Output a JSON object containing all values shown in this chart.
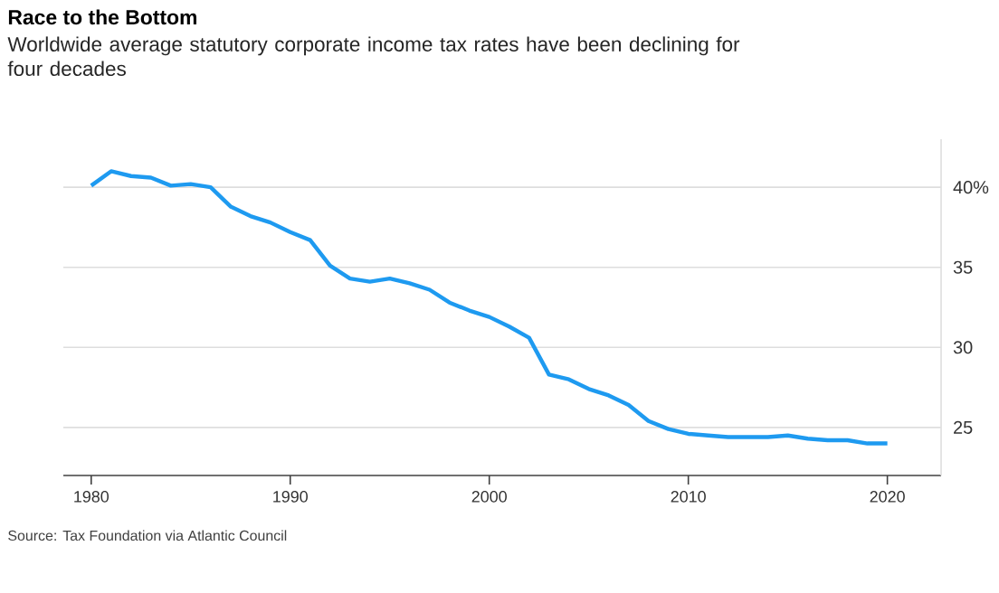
{
  "chart_data": {
    "type": "line",
    "title": "Race to the Bottom",
    "subtitle": "Worldwide average statutory corporate income tax rates have been declining for four decades",
    "annotations": [
      "Source: Tax Foundation via Atlantic Council"
    ],
    "x": [
      1980,
      1981,
      1982,
      1983,
      1984,
      1985,
      1986,
      1987,
      1988,
      1989,
      1990,
      1991,
      1992,
      1993,
      1994,
      1995,
      1996,
      1997,
      1998,
      1999,
      2000,
      2001,
      2002,
      2003,
      2004,
      2005,
      2006,
      2007,
      2008,
      2009,
      2010,
      2011,
      2012,
      2013,
      2014,
      2015,
      2016,
      2017,
      2018,
      2019,
      2020
    ],
    "series": [
      {
        "color": "#1e9af0",
        "values": [
          40.1,
          41.0,
          40.7,
          40.6,
          40.1,
          40.2,
          40.0,
          38.8,
          38.2,
          37.8,
          37.2,
          36.7,
          35.1,
          34.3,
          34.1,
          34.3,
          34.0,
          33.6,
          32.8,
          32.3,
          31.9,
          31.3,
          30.6,
          28.3,
          28.0,
          27.4,
          27.0,
          26.4,
          25.4,
          24.9,
          24.6,
          24.5,
          24.4,
          24.4,
          24.4,
          24.5,
          24.3,
          24.2,
          24.2,
          24.0,
          24.0
        ]
      }
    ],
    "xlim": [
      1978.6,
      2022.7
    ],
    "ylim": [
      22,
      43
    ],
    "xticks": [
      1980,
      1990,
      2000,
      2010,
      2020
    ],
    "yticks": [
      25,
      30,
      35,
      {
        "value": 40,
        "label": "40%"
      }
    ],
    "grid": "y",
    "marker": "none",
    "line_style": "solid"
  }
}
